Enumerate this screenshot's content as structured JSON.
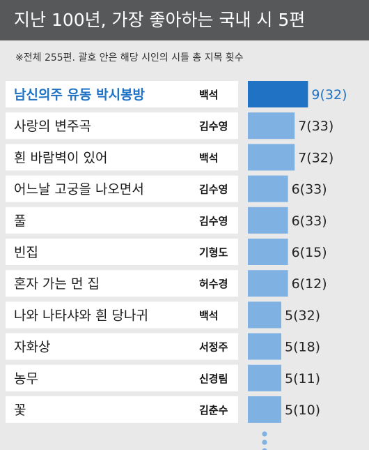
{
  "header": {
    "title": "지난 100년, 가장 좋아하는 국내 시 5편"
  },
  "note": "※전체 255편. 괄호 안은 해당 시인의 시들 총 지목 횟수",
  "chart_data": {
    "type": "bar",
    "orientation": "horizontal",
    "title": "지난 100년, 가장 좋아하는 국내 시 5편",
    "note": "※전체 255편. 괄호 안은 해당 시인의 시들 총 지목 횟수",
    "categories": [
      "남신의주 유동 박시봉방",
      "사랑의 변주곡",
      "흰 바람벽이 있어",
      "어느날 고궁을 나오면서",
      "풀",
      "빈집",
      "혼자 가는 먼 집",
      "나와 나타샤와 흰 당나귀",
      "자화상",
      "농무",
      "꽃"
    ],
    "poets": [
      "백석",
      "김수영",
      "백석",
      "김수영",
      "김수영",
      "기형도",
      "허수경",
      "백석",
      "서정주",
      "신경림",
      "김춘수"
    ],
    "values": [
      9,
      7,
      7,
      6,
      6,
      6,
      6,
      5,
      5,
      5,
      5
    ],
    "poet_totals": [
      32,
      33,
      32,
      33,
      33,
      15,
      12,
      32,
      18,
      11,
      10
    ],
    "value_labels": [
      "9(32)",
      "7(33)",
      "7(32)",
      "6(33)",
      "6(33)",
      "6(15)",
      "6(12)",
      "5(32)",
      "5(18)",
      "5(11)",
      "5(10)"
    ],
    "highlight_index": 0,
    "colors": {
      "highlight": "#1f72c4",
      "bar": "#7fb2e3",
      "highlight_text": "#1f72c4",
      "row_bg": "#ffffff",
      "background": "#e9e9e9",
      "header_bg": "#56585a"
    },
    "continues": true
  }
}
